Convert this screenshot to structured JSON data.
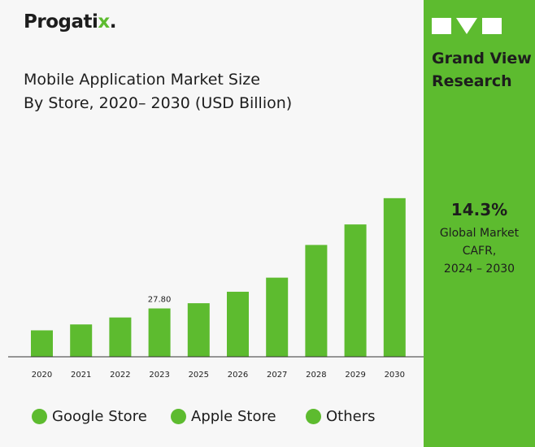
{
  "brand": {
    "name_main": "Progati",
    "name_accent": "x",
    "name_dot": "."
  },
  "title_lines": [
    "Mobile Application Market Size",
    "By Store, 2020– 2030 (USD Billion)"
  ],
  "colors": {
    "bar": "#5dbb2f",
    "panel": "#5dbb2f",
    "text": "#1d1d1d",
    "background": "#f7f7f7"
  },
  "chart_data": {
    "type": "bar",
    "title": "Mobile Application Market Size By Store, 2020– 2030 (USD Billion)",
    "categories": [
      "2020",
      "2021",
      "2022",
      "2023",
      "2025",
      "2026",
      "2027",
      "2028",
      "2029",
      "2030"
    ],
    "values": [
      15.2,
      18.6,
      22.6,
      27.8,
      30.8,
      37.4,
      45.5,
      64.3,
      76.1,
      91.2
    ],
    "data_labels": [
      {
        "category": "2023",
        "text": "27.80"
      }
    ],
    "ylim": [
      0,
      100
    ],
    "grid": false,
    "legend": {
      "placement": "bottom",
      "entries": [
        {
          "label": "Google Store",
          "color": "#5dbb2f"
        },
        {
          "label": "Apple Store",
          "color": "#5dbb2f"
        },
        {
          "label": "Others",
          "color": "#5dbb2f"
        }
      ]
    }
  },
  "side_panel": {
    "icons": [
      "square-icon",
      "triangle-down-icon",
      "square-icon"
    ],
    "brand_lines": [
      "Grand View",
      "Research"
    ],
    "stat_value": "14.3%",
    "stat_label_lines": [
      "Global Market",
      "CAFR,",
      "2024 – 2030"
    ]
  }
}
